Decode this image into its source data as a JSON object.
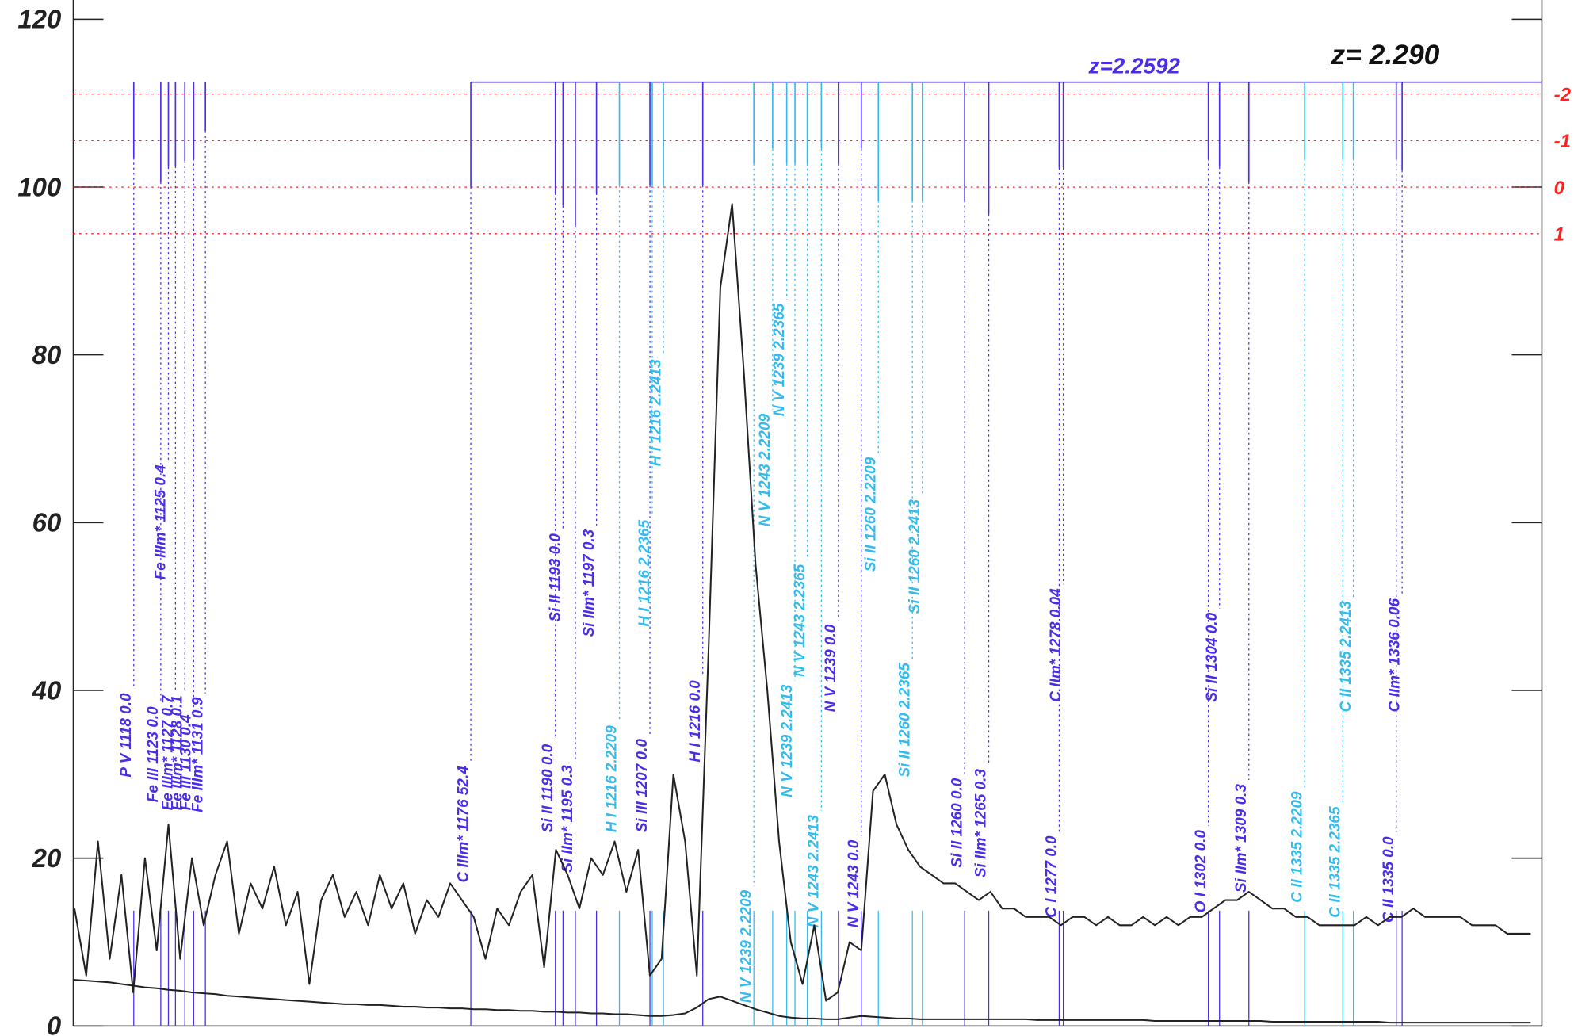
{
  "chart_data": {
    "type": "line",
    "xlim": [
      1108.8,
      1358.9
    ],
    "ylim": [
      0,
      122.3
    ],
    "yticks": [
      0,
      20,
      40,
      60,
      80,
      100,
      120
    ],
    "y2lim": [
      18.02,
      -4.02
    ],
    "y2ticks": [
      -2,
      -1,
      0,
      1
    ],
    "y2color": "#ff2020",
    "x": [
      1109,
      1111,
      1113,
      1115,
      1117,
      1119,
      1121,
      1123,
      1125,
      1127,
      1129,
      1131,
      1133,
      1135,
      1137,
      1139,
      1141,
      1143,
      1145,
      1147,
      1149,
      1151,
      1153,
      1155,
      1157,
      1159,
      1161,
      1163,
      1165,
      1167,
      1169,
      1171,
      1173,
      1175,
      1177,
      1179,
      1181,
      1183,
      1185,
      1187,
      1189,
      1191,
      1193,
      1195,
      1197,
      1199,
      1201,
      1203,
      1205,
      1207,
      1209,
      1211,
      1213,
      1215,
      1217,
      1219,
      1221,
      1223,
      1225,
      1227,
      1229,
      1231,
      1233,
      1235,
      1237,
      1239,
      1241,
      1243,
      1245,
      1247,
      1249,
      1251,
      1253,
      1255,
      1257,
      1259,
      1261,
      1263,
      1265,
      1267,
      1269,
      1271,
      1273,
      1275,
      1277,
      1279,
      1281,
      1283,
      1285,
      1287,
      1289,
      1291,
      1293,
      1295,
      1297,
      1299,
      1301,
      1303,
      1305,
      1307,
      1309,
      1311,
      1313,
      1315,
      1317,
      1319,
      1321,
      1323,
      1325,
      1327,
      1329,
      1331,
      1333,
      1335,
      1337,
      1339,
      1341,
      1343,
      1345,
      1347,
      1349,
      1351,
      1353,
      1355,
      1357
    ],
    "series": [
      {
        "color": "#222222",
        "values": [
          14,
          6,
          22,
          8,
          18,
          4,
          20,
          9,
          24,
          8,
          20,
          12,
          18,
          22,
          11,
          17,
          14,
          19,
          12,
          16,
          5,
          15,
          18,
          13,
          16,
          12,
          18,
          14,
          17,
          11,
          15,
          13,
          17,
          15,
          13,
          8,
          14,
          12,
          16,
          18,
          7,
          21,
          18,
          14,
          20,
          18,
          22,
          16,
          21,
          6,
          8,
          30,
          22,
          6,
          45,
          88,
          98,
          78,
          55,
          40,
          22,
          10,
          5,
          12,
          3,
          4,
          10,
          9,
          28,
          30,
          24,
          21,
          19,
          18,
          17,
          17,
          16,
          15,
          16,
          14,
          14,
          13,
          13,
          13,
          12,
          13,
          13,
          12,
          13,
          12,
          12,
          13,
          12,
          13,
          12,
          13,
          13,
          14,
          15,
          15,
          16,
          15,
          14,
          14,
          13,
          13,
          12,
          12,
          12,
          12,
          13,
          12,
          13,
          13,
          14,
          13,
          13,
          13,
          13,
          12,
          12,
          12,
          11,
          11,
          11
        ]
      },
      {
        "color": "#222222",
        "values": [
          5.5,
          5.4,
          5.3,
          5.2,
          5.0,
          4.8,
          4.6,
          4.5,
          4.3,
          4.2,
          4.0,
          3.9,
          3.8,
          3.6,
          3.5,
          3.4,
          3.3,
          3.2,
          3.1,
          3.0,
          2.9,
          2.8,
          2.7,
          2.6,
          2.6,
          2.5,
          2.5,
          2.4,
          2.3,
          2.3,
          2.2,
          2.2,
          2.1,
          2.1,
          2.0,
          2.0,
          1.9,
          1.9,
          1.8,
          1.8,
          1.7,
          1.7,
          1.6,
          1.6,
          1.5,
          1.5,
          1.4,
          1.4,
          1.3,
          1.2,
          1.2,
          1.3,
          1.5,
          2.2,
          3.2,
          3.5,
          3.0,
          2.5,
          2.0,
          1.6,
          1.2,
          1.0,
          0.9,
          0.9,
          0.8,
          0.8,
          1.0,
          1.2,
          1.1,
          1.0,
          0.9,
          0.9,
          0.8,
          0.8,
          0.8,
          0.8,
          0.8,
          0.8,
          0.8,
          0.8,
          0.8,
          0.8,
          0.7,
          0.7,
          0.7,
          0.7,
          0.7,
          0.7,
          0.7,
          0.7,
          0.7,
          0.7,
          0.6,
          0.6,
          0.6,
          0.6,
          0.6,
          0.6,
          0.6,
          0.6,
          0.6,
          0.6,
          0.5,
          0.5,
          0.5,
          0.5,
          0.5,
          0.5,
          0.5,
          0.5,
          0.5,
          0.5,
          0.4,
          0.4,
          0.4,
          0.4,
          0.4,
          0.4,
          0.4,
          0.4,
          0.4,
          0.4,
          0.4,
          0.4,
          0.4
        ]
      }
    ],
    "lines": [
      {
        "label": "P V 1118 0.0",
        "x": 1119.1,
        "top": 103.5,
        "color": "#4a2de6"
      },
      {
        "label": "Fe III 1123 0.0",
        "x": 1123.7,
        "top": 100.6,
        "color": "#4a2de6"
      },
      {
        "label": "Fe IIIm* 1125 0.4",
        "x": 1125.0,
        "top": 102.4,
        "color": "#4a2de6"
      },
      {
        "label": "Fe IIIm* 1127 0.7",
        "x": 1126.2,
        "top": 102.5,
        "color": "#4a2de6"
      },
      {
        "label": "Fe IIIm* 1128 0.1",
        "x": 1127.8,
        "top": 103.1,
        "color": "#4a2de6"
      },
      {
        "label": "Fe III 1130 0.4",
        "x": 1129.3,
        "top": 103.4,
        "color": "#4a2de6"
      },
      {
        "label": "Fe IIIm* 1131 0.9",
        "x": 1131.3,
        "top": 106.7,
        "color": "#4a2de6"
      },
      {
        "label": "C IIIm* 1176 52.4",
        "x": 1176.5,
        "top": 100,
        "color": "#4a2de6"
      },
      {
        "label": "Si II 1190 0.0",
        "x": 1190.9,
        "top": 99.3,
        "color": "#4a2de6"
      },
      {
        "label": "Si II 1193 0.0",
        "x": 1192.2,
        "top": 97.8,
        "color": "#4a2de6"
      },
      {
        "label": "Si IIm* 1195 0.3",
        "x": 1194.3,
        "top": 95.4,
        "color": "#4a2de6"
      },
      {
        "label": "Si IIm* 1197 0.3",
        "x": 1197.9,
        "top": 99.3,
        "color": "#4a2de6"
      },
      {
        "label": "H I 1216 2.2209",
        "x": 1201.8,
        "top": 100.2,
        "color": "#33bbee"
      },
      {
        "label": "Si III 1207 0.0",
        "x": 1207.0,
        "top": 100.2,
        "color": "#4a2de6"
      },
      {
        "label": "H I 1216 2.2365",
        "x": 1207.4,
        "top": 100.2,
        "color": "#33bbee"
      },
      {
        "label": "H I 1216 2.2413",
        "x": 1209.3,
        "top": 100.2,
        "color": "#33bbee"
      },
      {
        "label": "H I 1216 0.0",
        "x": 1216.0,
        "top": 100.2,
        "color": "#4a2de6"
      },
      {
        "label": "N V 1239 2.2209",
        "x": 1224.7,
        "top": 102.8,
        "color": "#33bbee"
      },
      {
        "label": "N V 1243 2.2209",
        "x": 1227.9,
        "top": 104.6,
        "color": "#33bbee"
      },
      {
        "label": "N V 1239 2.2365",
        "x": 1230.3,
        "top": 102.8,
        "color": "#33bbee"
      },
      {
        "label": "N V 1239 2.2413",
        "x": 1231.7,
        "top": 102.8,
        "color": "#33bbee"
      },
      {
        "label": "N V 1243 2.2365",
        "x": 1233.8,
        "top": 102.8,
        "color": "#33bbee"
      },
      {
        "label": "N V 1243 2.2413",
        "x": 1236.2,
        "top": 104.6,
        "color": "#33bbee"
      },
      {
        "label": "N V 1239 0.0",
        "x": 1239.1,
        "top": 102.8,
        "color": "#4a2de6"
      },
      {
        "label": "N V 1243 0.0",
        "x": 1243.0,
        "top": 104.6,
        "color": "#4a2de6"
      },
      {
        "label": "Si II 1260 2.2209",
        "x": 1245.9,
        "top": 98.4,
        "color": "#33bbee"
      },
      {
        "label": "Si II 1260 2.2365",
        "x": 1251.7,
        "top": 98.4,
        "color": "#33bbee"
      },
      {
        "label": "Si II 1260 2.2413",
        "x": 1253.4,
        "top": 98.4,
        "color": "#33bbee"
      },
      {
        "label": "Si II 1260 0.0",
        "x": 1260.6,
        "top": 98.4,
        "color": "#4a2de6"
      },
      {
        "label": "Si IIm* 1265 0.3",
        "x": 1264.7,
        "top": 96.8,
        "color": "#4a2de6"
      },
      {
        "label": "C I 1277 0.0",
        "x": 1276.7,
        "top": 102.3,
        "color": "#4a2de6"
      },
      {
        "label": "C IIm* 1278 0.04",
        "x": 1277.4,
        "top": 102.3,
        "color": "#4a2de6"
      },
      {
        "label": "O I 1302 0.0",
        "x": 1302.1,
        "top": 103.4,
        "color": "#4a2de6"
      },
      {
        "label": "Si II 1304 0.0",
        "x": 1304.0,
        "top": 102.4,
        "color": "#4a2de6"
      },
      {
        "label": "Si IIm* 1309 0.3",
        "x": 1309.0,
        "top": 100.6,
        "color": "#4a2de6"
      },
      {
        "label": "C II 1335 2.2209",
        "x": 1318.5,
        "top": 103.4,
        "color": "#33bbee"
      },
      {
        "label": "C II 1335 2.2365",
        "x": 1325.0,
        "top": 103.4,
        "color": "#33bbee"
      },
      {
        "label": "C II 1335 2.2413",
        "x": 1326.8,
        "top": 103.4,
        "color": "#33bbee"
      },
      {
        "label": "C II 1335 0.0",
        "x": 1334.1,
        "top": 103.4,
        "color": "#4a2de6"
      },
      {
        "label": "C IIm* 1336 0.06",
        "x": 1335.1,
        "top": 102.0,
        "color": "#4a2de6"
      }
    ],
    "annotations": [
      {
        "text": "z=2.2592",
        "color": "#4a2de6"
      },
      {
        "text": "z= 2.290",
        "color": "#111111"
      }
    ]
  }
}
